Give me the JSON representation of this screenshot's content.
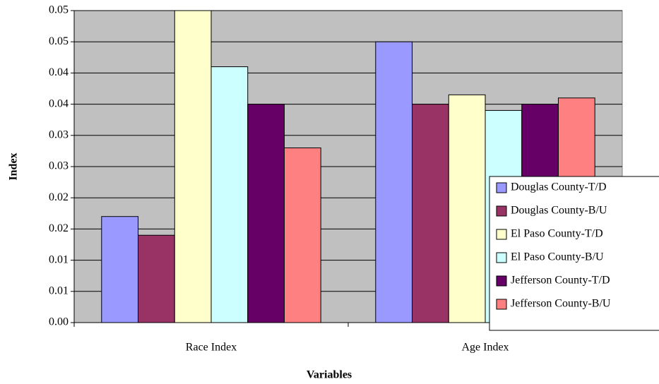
{
  "chart_data": {
    "type": "bar",
    "x_label": "Variables",
    "y_label": "Index",
    "categories": [
      "Race Index",
      "Age Index"
    ],
    "series": [
      {
        "name": "Douglas County-T/D",
        "color": "#9999ff",
        "values": [
          0.017,
          0.045
        ]
      },
      {
        "name": "Douglas County-B/U",
        "color": "#993366",
        "values": [
          0.014,
          0.035
        ]
      },
      {
        "name": "El Paso County-T/D",
        "color": "#ffffcc",
        "values": [
          0.05,
          0.0365
        ]
      },
      {
        "name": "El Paso County-B/U",
        "color": "#ccffff",
        "values": [
          0.041,
          0.034
        ]
      },
      {
        "name": "Jefferson County-T/D",
        "color": "#660066",
        "values": [
          0.035,
          0.035
        ]
      },
      {
        "name": "Jefferson County-B/U",
        "color": "#ff8080",
        "values": [
          0.028,
          0.036
        ]
      }
    ],
    "ylim": [
      0,
      0.05
    ],
    "yticks": [
      {
        "value": 0,
        "label": "0.00"
      },
      {
        "value": 0.005,
        "label": "0.01"
      },
      {
        "value": 0.01,
        "label": "0.01"
      },
      {
        "value": 0.015,
        "label": "0.02"
      },
      {
        "value": 0.02,
        "label": "0.02"
      },
      {
        "value": 0.025,
        "label": "0.03"
      },
      {
        "value": 0.03,
        "label": "0.03"
      },
      {
        "value": 0.035,
        "label": "0.04"
      },
      {
        "value": 0.04,
        "label": "0.04"
      },
      {
        "value": 0.045,
        "label": "0.05"
      },
      {
        "value": 0.05,
        "label": "0.05"
      }
    ],
    "grid": true,
    "plot_background": "#c0c0c0",
    "legend": "right"
  }
}
